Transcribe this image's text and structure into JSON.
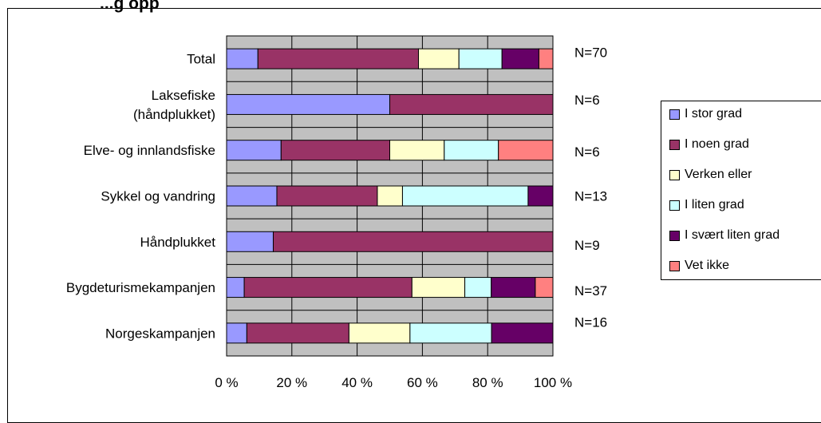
{
  "title": "...g opp",
  "chart_data": {
    "type": "bar",
    "orientation": "horizontal",
    "stacked": "percent",
    "categories": [
      "Total",
      "Laksefiske (håndplukket)",
      "Elve- og innlandsfiske",
      "Sykkel og vandring",
      "Håndplukket",
      "Bygdeturismekampanjen",
      "Norgeskampanjen"
    ],
    "category_lines": [
      [
        "Total"
      ],
      [
        "Laksefiske",
        "(håndplukket)"
      ],
      [
        "Elve- og innlandsfiske"
      ],
      [
        "Sykkel og vandring"
      ],
      [
        "Håndplukket"
      ],
      [
        "Bygdeturismekampanjen"
      ],
      [
        "Norgeskampanjen"
      ]
    ],
    "n_labels": [
      "N=70",
      "N=6",
      "N=6",
      "N=13",
      "N=9",
      "N=37",
      "N=16"
    ],
    "series": [
      {
        "name": "I stor grad",
        "color": "#9999ff",
        "values": [
          9.6,
          50,
          16.7,
          15.4,
          14.3,
          5.4,
          6.2
        ]
      },
      {
        "name": "I noen grad",
        "color": "#993366",
        "values": [
          49.2,
          50,
          33.3,
          30.8,
          85.7,
          51.4,
          31.3
        ]
      },
      {
        "name": "Verken eller",
        "color": "#ffffcc",
        "values": [
          12.4,
          0,
          16.7,
          7.7,
          0,
          16.2,
          18.7
        ]
      },
      {
        "name": "I liten grad",
        "color": "#ccffff",
        "values": [
          13.2,
          0,
          16.6,
          38.5,
          0,
          8.1,
          25
        ]
      },
      {
        "name": "I svært liten grad",
        "color": "#660066",
        "values": [
          11.3,
          0,
          0,
          7.6,
          0,
          13.5,
          18.8
        ]
      },
      {
        "name": "Vet ikke",
        "color": "#ff8080",
        "values": [
          4.3,
          0,
          16.7,
          0,
          0,
          5.4,
          0
        ]
      }
    ],
    "x_ticks": [
      "0 %",
      "20 %",
      "40 %",
      "60 %",
      "80 %",
      "100 %"
    ],
    "xlim": [
      0,
      100
    ],
    "grid": true,
    "plot_background": "#c0c0c0",
    "legend_position": "right"
  }
}
